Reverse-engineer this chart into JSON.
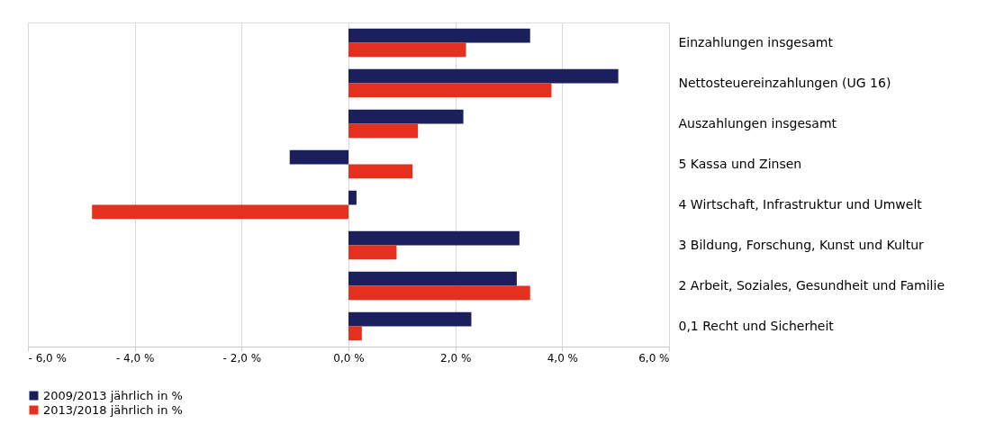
{
  "chart_data": {
    "type": "bar",
    "orientation": "horizontal",
    "categories": [
      "Einzahlungen insgesamt",
      "Nettosteuereinzahlungen (UG 16)",
      "Auszahlungen insgesamt",
      "5 Kassa und Zinsen",
      "4 Wirtschaft, Infrastruktur und Umwelt",
      "3 Bildung, Forschung, Kunst und Kultur",
      "2 Arbeit, Soziales, Gesundheit und Familie",
      "0,1 Recht und Sicherheit"
    ],
    "series": [
      {
        "name": "2009/2013 jährlich in %",
        "color": "#1b1f5c",
        "values": [
          3.4,
          5.05,
          2.15,
          -1.1,
          0.15,
          3.2,
          3.15,
          2.3
        ]
      },
      {
        "name": "2013/2018 jährlich in %",
        "color": "#e3301f",
        "values": [
          2.2,
          3.8,
          1.3,
          1.2,
          -4.8,
          0.9,
          3.4,
          0.25
        ]
      }
    ],
    "xlim": [
      -6,
      6
    ],
    "xticks": [
      {
        "value": -6,
        "label": "- 6,0 %"
      },
      {
        "value": -4,
        "label": "- 4,0 %"
      },
      {
        "value": -2,
        "label": "- 2,0 %"
      },
      {
        "value": 0,
        "label": "0,0 %"
      },
      {
        "value": 2,
        "label": "2,0 %"
      },
      {
        "value": 4,
        "label": "4,0 %"
      },
      {
        "value": 6,
        "label": "6,0 %"
      }
    ],
    "grid": "x",
    "legend": "bottom"
  }
}
